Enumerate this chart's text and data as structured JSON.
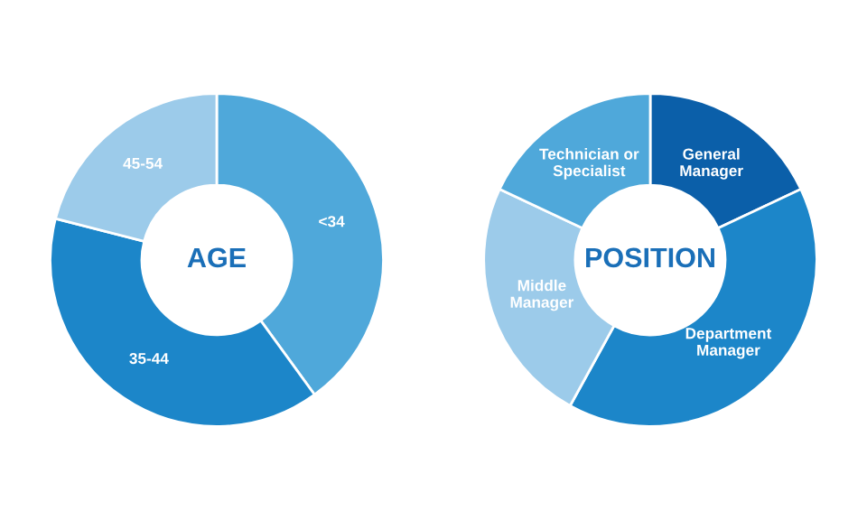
{
  "chart_data": [
    {
      "type": "donut",
      "title": "AGE",
      "categories": [
        "<34",
        "35-44",
        "45-54"
      ],
      "values": [
        40,
        39,
        21
      ],
      "colors": [
        "#4fa8da",
        "#1c86c9",
        "#9ccbea"
      ]
    },
    {
      "type": "donut",
      "title": "POSITION",
      "categories": [
        "General Manager",
        "Department Manager",
        "Middle Manager",
        "Technician or Specialist"
      ],
      "values": [
        18,
        40,
        24,
        18
      ],
      "colors": [
        "#0b5fa9",
        "#1c86c9",
        "#9ccbea",
        "#4fa8da"
      ]
    }
  ]
}
